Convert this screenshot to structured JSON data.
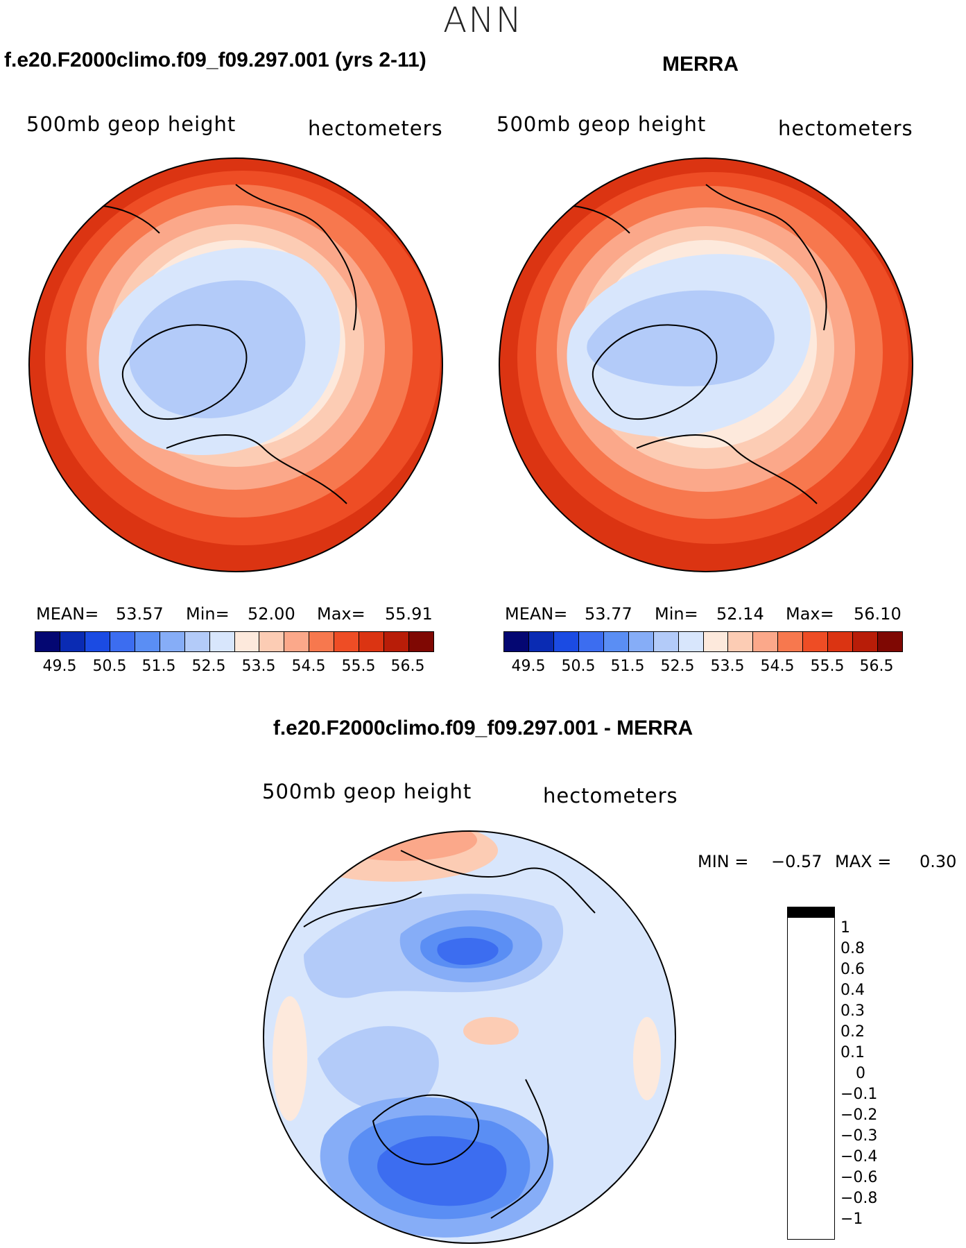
{
  "season": "ANN",
  "panels": [
    {
      "title": "f.e20.F2000climo.f09_f09.297.001 (yrs 2-11)",
      "variable": "500mb geop height",
      "units": "hectometers",
      "mean_label": "MEAN=",
      "mean": "53.57",
      "min_label": "Min=",
      "min": "52.00",
      "max_label": "Max=",
      "max": "55.91",
      "ticks": [
        "49.5",
        "50.5",
        "51.5",
        "52.5",
        "53.5",
        "54.5",
        "55.5",
        "56.5"
      ]
    },
    {
      "title": "MERRA",
      "variable": "500mb geop height",
      "units": "hectometers",
      "mean_label": "MEAN=",
      "mean": "53.77",
      "min_label": "Min=",
      "min": "52.14",
      "max_label": "Max=",
      "max": "56.10",
      "ticks": [
        "49.5",
        "50.5",
        "51.5",
        "52.5",
        "53.5",
        "54.5",
        "55.5",
        "56.5"
      ]
    }
  ],
  "diff": {
    "title": "f.e20.F2000climo.f09_f09.297.001 - MERRA",
    "variable": "500mb geop height",
    "units": "hectometers",
    "min_label": "MIN =",
    "min": "−0.57",
    "max_label": "MAX =",
    "max": "0.30",
    "levels": [
      "1",
      "0.8",
      "0.6",
      "0.4",
      "0.3",
      "0.2",
      "0.1",
      "0",
      "−0.1",
      "−0.2",
      "−0.3",
      "−0.4",
      "−0.6",
      "−0.8",
      "−1"
    ]
  },
  "colors": {
    "abs_scale": [
      "#040772",
      "#0a2bb3",
      "#1b4be3",
      "#3c6df0",
      "#5a8ef4",
      "#86adf7",
      "#b3cbf9",
      "#d8e6fc",
      "#fde9dc",
      "#fcccb4",
      "#fba88a",
      "#f7784e",
      "#ee4d25",
      "#db3412",
      "#b81d08",
      "#7f0803"
    ],
    "diff_scale": [
      "#7f0803",
      "#b81d08",
      "#db3412",
      "#ee4d25",
      "#f7784e",
      "#fba88a",
      "#fcccb4",
      "#fde9dc",
      "#d8e6fc",
      "#b3cbf9",
      "#86adf7",
      "#5a8ef4",
      "#3c6df0",
      "#1b4be3",
      "#0a2bb3",
      "#040772"
    ]
  },
  "chart_data": [
    {
      "type": "heatmap",
      "title": "f.e20.F2000climo.f09_f09.297.001 (yrs 2-11)",
      "subtitle": "500mb geop height (hectometers)",
      "projection": "north polar stereographic",
      "contour_levels": [
        49.5,
        50,
        50.5,
        51,
        51.5,
        52,
        52.5,
        53,
        53.5,
        54,
        54.5,
        55,
        55.5,
        56,
        56.5
      ],
      "stats": {
        "mean": 53.57,
        "min": 52.0,
        "max": 55.91
      }
    },
    {
      "type": "heatmap",
      "title": "MERRA",
      "subtitle": "500mb geop height (hectometers)",
      "projection": "north polar stereographic",
      "contour_levels": [
        49.5,
        50,
        50.5,
        51,
        51.5,
        52,
        52.5,
        53,
        53.5,
        54,
        54.5,
        55,
        55.5,
        56,
        56.5
      ],
      "stats": {
        "mean": 53.77,
        "min": 52.14,
        "max": 56.1
      }
    },
    {
      "type": "heatmap",
      "title": "f.e20.F2000climo.f09_f09.297.001 - MERRA",
      "subtitle": "500mb geop height (hectometers)",
      "projection": "north polar stereographic",
      "contour_levels": [
        -1,
        -0.8,
        -0.6,
        -0.4,
        -0.3,
        -0.2,
        -0.1,
        0,
        0.1,
        0.2,
        0.3,
        0.4,
        0.6,
        0.8,
        1
      ],
      "stats": {
        "min": -0.57,
        "max": 0.3
      }
    }
  ]
}
